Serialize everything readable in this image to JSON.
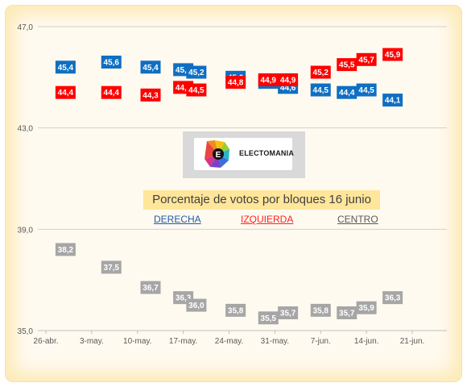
{
  "chart_data": {
    "type": "scatter",
    "title": "Porcentaje de votos por bloques 16 junio",
    "logo_text": "ELECTOMANIA",
    "x_ticks": [
      "26-abr.",
      "3-may.",
      "10-may.",
      "17-may.",
      "24-may.",
      "31-may.",
      "7-jun.",
      "14-jun.",
      "21-jun."
    ],
    "y_ticks": [
      "35,0",
      "39,0",
      "43,0",
      "47,0"
    ],
    "ylim": [
      35.0,
      47.0
    ],
    "xlim": [
      "2016-04-26",
      "2016-06-21"
    ],
    "grid": "horizontal",
    "legend": [
      {
        "label": "DERECHA",
        "color": "#1f5aa8"
      },
      {
        "label": "IZQUIERDA",
        "color": "#ff1f1f"
      },
      {
        "label": "CENTRO",
        "color": "#595959"
      }
    ],
    "series": [
      {
        "name": "DERECHA",
        "color": "#0f6fc2",
        "points": [
          {
            "x": "2016-04-29",
            "y": 45.4,
            "label": "45,4"
          },
          {
            "x": "2016-05-06",
            "y": 45.6,
            "label": "45,6"
          },
          {
            "x": "2016-05-12",
            "y": 45.4,
            "label": "45,4"
          },
          {
            "x": "2016-05-17",
            "y": 45.3,
            "label": "45,3"
          },
          {
            "x": "2016-05-19",
            "y": 45.2,
            "label": "45,2"
          },
          {
            "x": "2016-05-25",
            "y": 45.0,
            "label": "45,0"
          },
          {
            "x": "2016-05-30",
            "y": 44.8,
            "label": "44,8"
          },
          {
            "x": "2016-06-02",
            "y": 44.6,
            "label": "44,6"
          },
          {
            "x": "2016-06-07",
            "y": 44.5,
            "label": "44,5"
          },
          {
            "x": "2016-06-11",
            "y": 44.4,
            "label": "44,4"
          },
          {
            "x": "2016-06-14",
            "y": 44.5,
            "label": "44,5"
          },
          {
            "x": "2016-06-18",
            "y": 44.1,
            "label": "44,1"
          }
        ]
      },
      {
        "name": "IZQUIERDA",
        "color": "#ff0000",
        "points": [
          {
            "x": "2016-04-29",
            "y": 44.4,
            "label": "44,4"
          },
          {
            "x": "2016-05-06",
            "y": 44.4,
            "label": "44,4"
          },
          {
            "x": "2016-05-12",
            "y": 44.3,
            "label": "44,3"
          },
          {
            "x": "2016-05-17",
            "y": 44.6,
            "label": "44,6"
          },
          {
            "x": "2016-05-19",
            "y": 44.5,
            "label": "44,5"
          },
          {
            "x": "2016-05-25",
            "y": 44.8,
            "label": "44,8"
          },
          {
            "x": "2016-05-30",
            "y": 44.9,
            "label": "44,9"
          },
          {
            "x": "2016-06-02",
            "y": 44.9,
            "label": "44,9"
          },
          {
            "x": "2016-06-07",
            "y": 45.2,
            "label": "45,2"
          },
          {
            "x": "2016-06-11",
            "y": 45.5,
            "label": "45,5"
          },
          {
            "x": "2016-06-14",
            "y": 45.7,
            "label": "45,7"
          },
          {
            "x": "2016-06-18",
            "y": 45.9,
            "label": "45,9"
          }
        ]
      },
      {
        "name": "CENTRO",
        "color": "#a6a6a6",
        "points": [
          {
            "x": "2016-04-29",
            "y": 38.2,
            "label": "38,2"
          },
          {
            "x": "2016-05-06",
            "y": 37.5,
            "label": "37,5"
          },
          {
            "x": "2016-05-12",
            "y": 36.7,
            "label": "36,7"
          },
          {
            "x": "2016-05-17",
            "y": 36.3,
            "label": "36,3"
          },
          {
            "x": "2016-05-19",
            "y": 36.0,
            "label": "36,0"
          },
          {
            "x": "2016-05-25",
            "y": 35.8,
            "label": "35,8"
          },
          {
            "x": "2016-05-30",
            "y": 35.5,
            "label": "35,5"
          },
          {
            "x": "2016-06-02",
            "y": 35.7,
            "label": "35,7"
          },
          {
            "x": "2016-06-07",
            "y": 35.8,
            "label": "35,8"
          },
          {
            "x": "2016-06-11",
            "y": 35.7,
            "label": "35,7"
          },
          {
            "x": "2016-06-14",
            "y": 35.9,
            "label": "35,9"
          },
          {
            "x": "2016-06-18",
            "y": 36.3,
            "label": "36,3"
          }
        ]
      }
    ]
  }
}
